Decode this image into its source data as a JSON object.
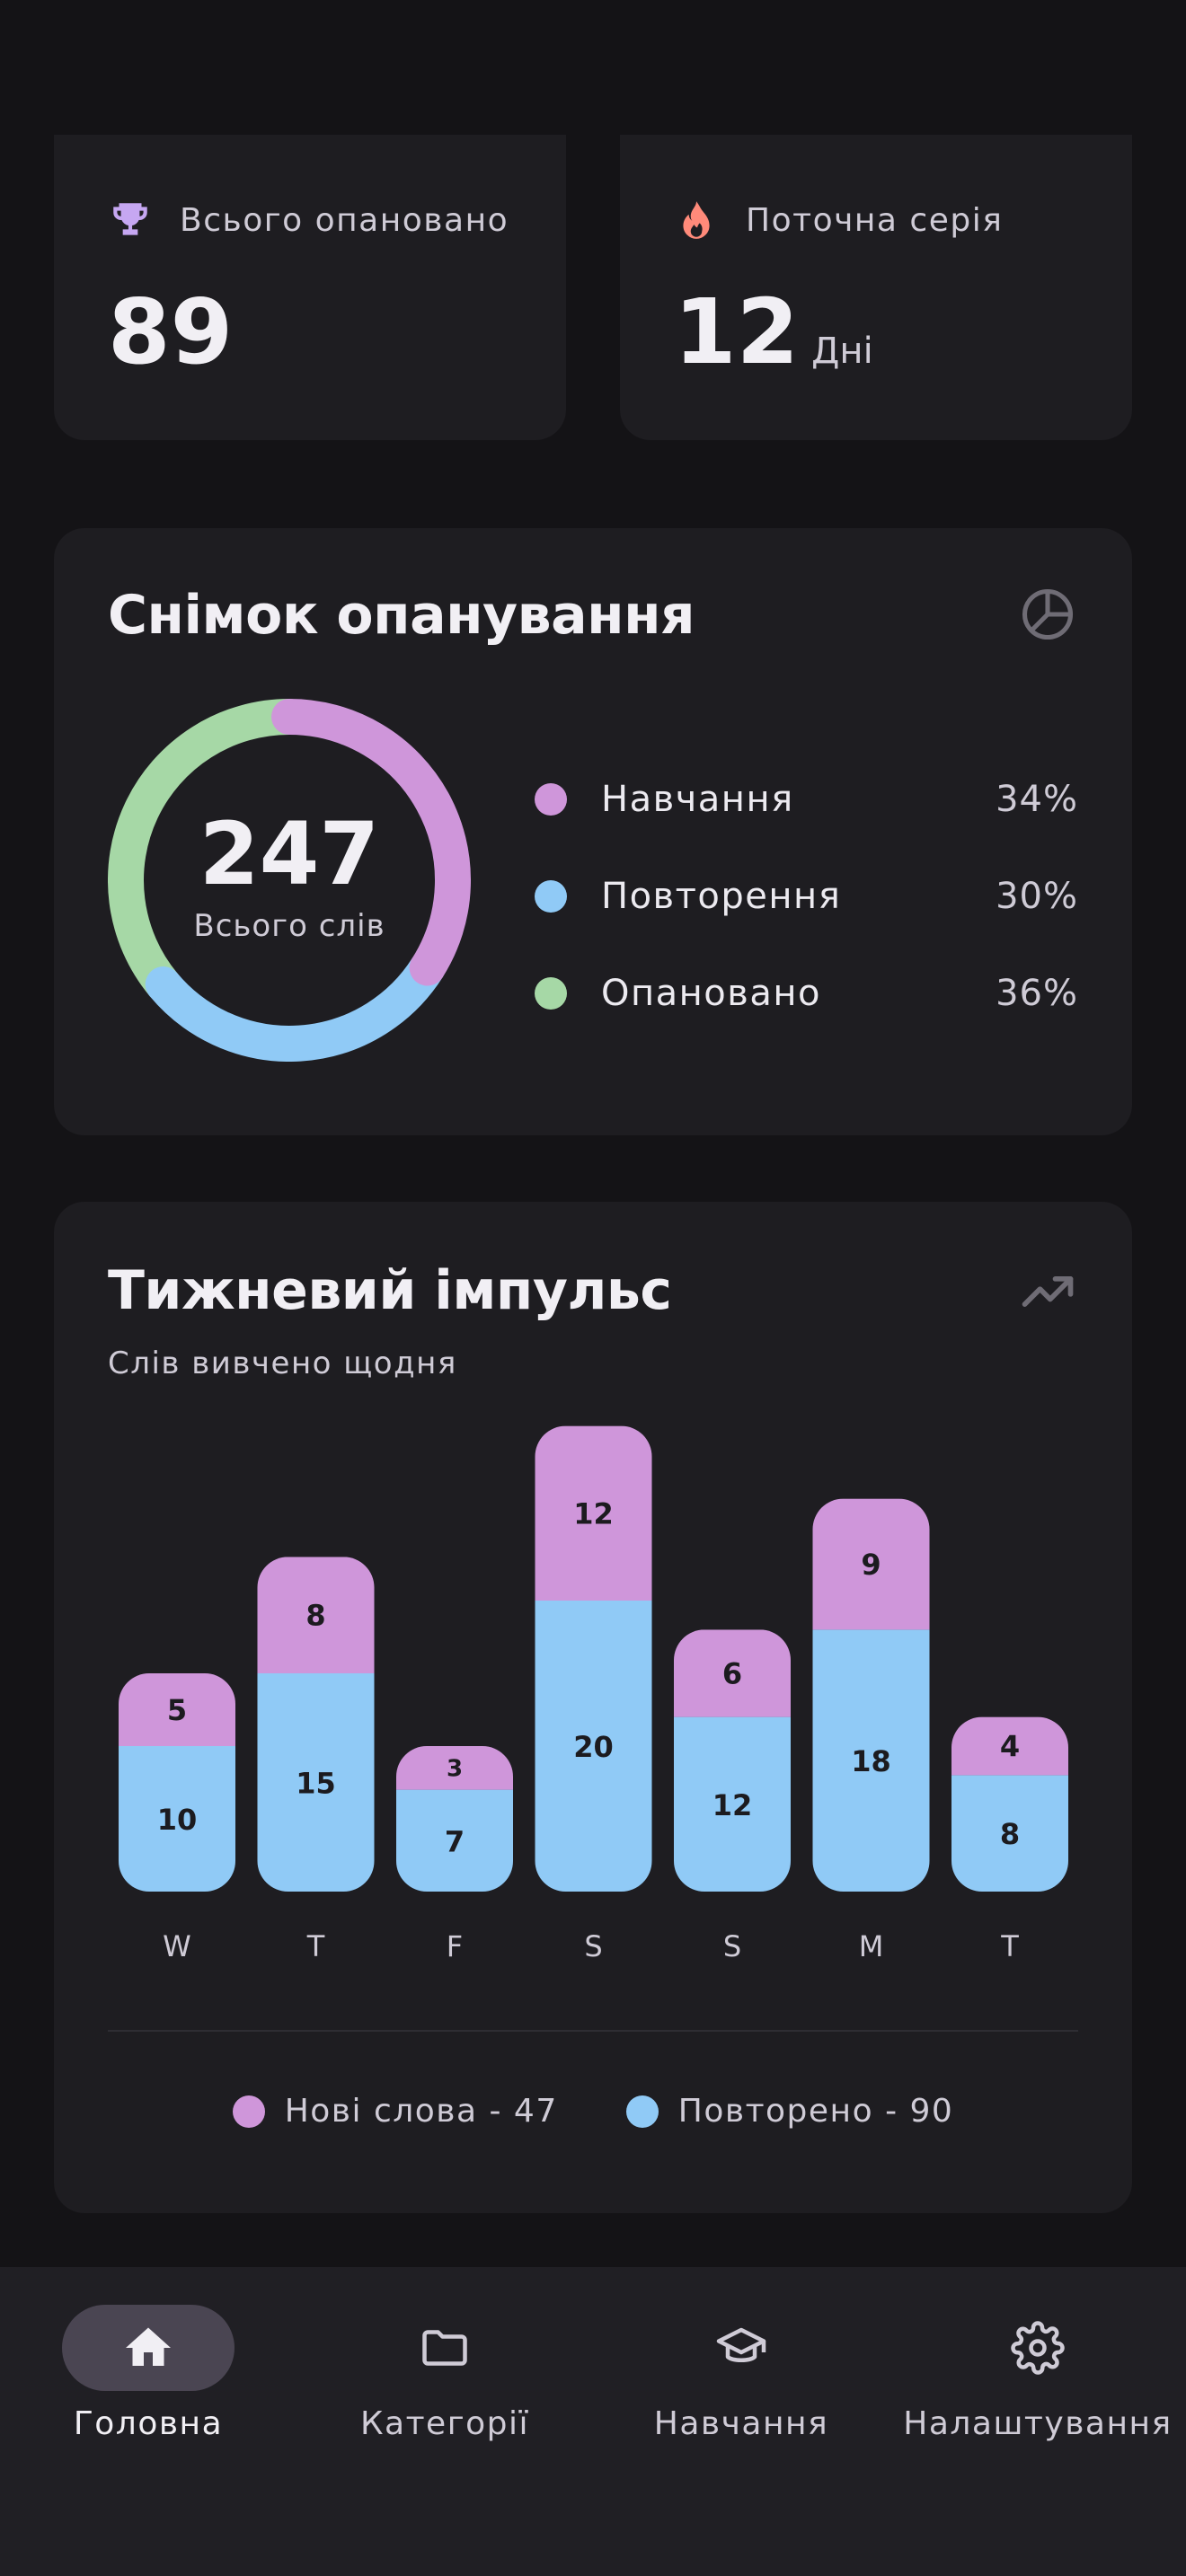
{
  "stats": {
    "mastered": {
      "label": "Всього опановано",
      "value": "89",
      "icon": "trophy-icon",
      "color": "#C6A7F2"
    },
    "streak": {
      "label": "Поточна серія",
      "value": "12",
      "unit": "Дні",
      "icon": "flame-icon",
      "color": "#FF8A7A"
    }
  },
  "mastery": {
    "title": "Снімок опанування",
    "icon": "pie-chart-icon",
    "total": "247",
    "total_label": "Всього слів",
    "segments": [
      {
        "name": "Навчання",
        "pct_label": "34%",
        "value": 34,
        "color": "#CF96DA"
      },
      {
        "name": "Повторення",
        "pct_label": "30%",
        "value": 30,
        "color": "#90CAF6"
      },
      {
        "name": "Опановано",
        "pct_label": "36%",
        "value": 36,
        "color": "#A6D8A6"
      }
    ]
  },
  "weekly": {
    "title": "Тижневий імпульс",
    "subtitle": "Слів вивчено щодня",
    "icon": "trending-up-icon",
    "legend": [
      {
        "label": "Нові слова - 47",
        "color": "#CF96DA"
      },
      {
        "label": "Повторено - 90",
        "color": "#90CAF6"
      }
    ]
  },
  "chart_data": {
    "type": "bar",
    "stacked": true,
    "categories": [
      "W",
      "T",
      "F",
      "S",
      "S",
      "M",
      "T"
    ],
    "series": [
      {
        "name": "Повторено",
        "values": [
          10,
          15,
          7,
          20,
          12,
          18,
          8
        ],
        "color": "#90CAF6"
      },
      {
        "name": "Нові слова",
        "values": [
          5,
          8,
          3,
          12,
          6,
          9,
          4
        ],
        "color": "#CF96DA"
      }
    ],
    "title": "",
    "xlabel": "",
    "ylabel": "",
    "grid": false
  },
  "nav": {
    "items": [
      {
        "label": "Головна",
        "icon": "home-icon",
        "active": true
      },
      {
        "label": "Категорії",
        "icon": "folder-icon",
        "active": false
      },
      {
        "label": "Навчання",
        "icon": "graduation-cap-icon",
        "active": false
      },
      {
        "label": "Налаштування",
        "icon": "gear-icon",
        "active": false
      }
    ]
  }
}
